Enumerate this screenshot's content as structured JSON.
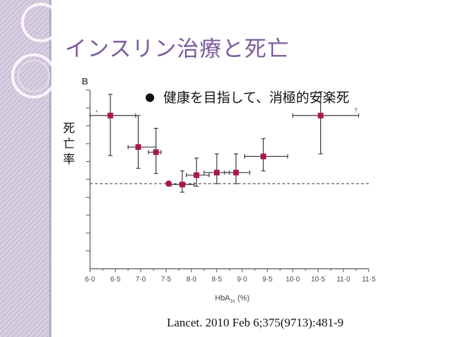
{
  "slide": {
    "title": "インスリン治療と死亡",
    "panel_letter": "B",
    "bullet_icon": "filled-circle-bullet-icon",
    "bullet_text": "健康を目指して、消極的安楽死",
    "ylabel": "死亡率",
    "citation": "Lancet. 2010 Feb 6;375(9713):481-9"
  },
  "chart_data": {
    "type": "scatter",
    "title": "",
    "xlabel": "HbA1c (%)",
    "xlabel_main": "HbA",
    "xlabel_sub": "1c",
    "xlabel_tail": " (%)",
    "ylabel": "死亡率",
    "xlim": [
      6.0,
      11.5
    ],
    "ylim": [
      0,
      2.1
    ],
    "x_ticks": [
      6.0,
      6.5,
      7.0,
      7.5,
      8.0,
      8.5,
      9.0,
      9.5,
      10.0,
      10.5,
      11.0,
      11.5
    ],
    "x_tick_labels": [
      "6·0",
      "6·5",
      "7·0",
      "7·5",
      "8·0",
      "8·5",
      "9·0",
      "9·5",
      "10·0",
      "10·5",
      "11·0",
      "11·5"
    ],
    "y_tick_count": 10,
    "reference_line": 1.0,
    "reference_point": {
      "x": 7.55,
      "y": 1.0
    },
    "points": [
      {
        "x": 6.4,
        "x_lo": 6.0,
        "x_hi": 6.9,
        "y": 1.8,
        "y_lo": 1.33,
        "y_hi": 2.05
      },
      {
        "x": 6.95,
        "x_lo": 6.75,
        "x_hi": 7.3,
        "y": 1.43,
        "y_lo": 1.18,
        "y_hi": 1.8
      },
      {
        "x": 7.3,
        "x_lo": 7.15,
        "x_hi": 7.4,
        "y": 1.37,
        "y_lo": 1.12,
        "y_hi": 1.65
      },
      {
        "x": 7.82,
        "x_lo": 7.6,
        "x_hi": 8.05,
        "y": 0.99,
        "y_lo": 0.9,
        "y_hi": 1.15
      },
      {
        "x": 8.1,
        "x_lo": 7.9,
        "x_hi": 8.35,
        "y": 1.1,
        "y_lo": 0.97,
        "y_hi": 1.3
      },
      {
        "x": 8.5,
        "x_lo": 8.25,
        "x_hi": 8.75,
        "y": 1.13,
        "y_lo": 1.0,
        "y_hi": 1.35
      },
      {
        "x": 8.88,
        "x_lo": 8.65,
        "x_hi": 9.15,
        "y": 1.13,
        "y_lo": 1.0,
        "y_hi": 1.35
      },
      {
        "x": 9.42,
        "x_lo": 9.05,
        "x_hi": 9.9,
        "y": 1.32,
        "y_lo": 1.15,
        "y_hi": 1.53
      },
      {
        "x": 10.55,
        "x_lo": 10.0,
        "x_hi": 11.3,
        "y": 1.8,
        "y_lo": 1.35,
        "y_hi": 2.08
      }
    ],
    "markers": [
      {
        "x": 6.13,
        "y": 1.81,
        "text": "*"
      },
      {
        "x": 11.25,
        "y": 1.84,
        "text": "†"
      }
    ],
    "colors": {
      "marker": "#a81848",
      "errorbar": "#3a3a3a",
      "axis": "#555555"
    }
  }
}
